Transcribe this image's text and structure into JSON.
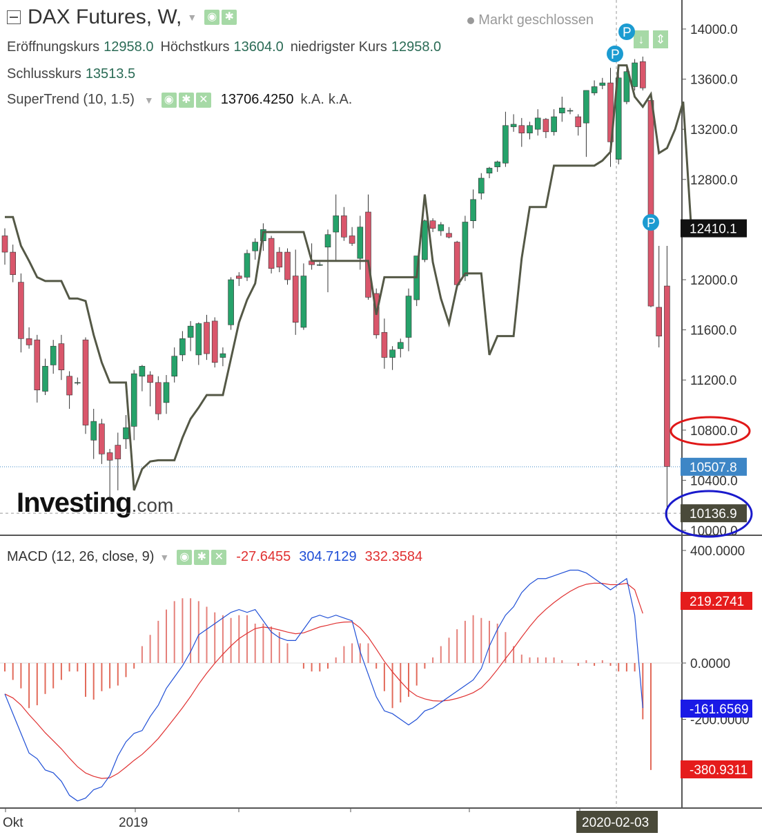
{
  "header": {
    "title": "DAX Futures, W,",
    "market_status": "Markt geschlossen",
    "ohlc": [
      {
        "label": "Eröffnungskurs",
        "value": "12958.0"
      },
      {
        "label": "Höchstkurs",
        "value": "13604.0"
      },
      {
        "label": "niedrigster Kurs",
        "value": "12958.0"
      }
    ],
    "close": {
      "label": "Schlusskurs",
      "value": "13513.5"
    },
    "supertrend": {
      "label": "SuperTrend (10, 1.5)",
      "value": "13706.4250",
      "na1": "k.A.",
      "na2": "k.A."
    }
  },
  "macd_header": {
    "label": "MACD (12, 26, close, 9)",
    "hist": "-27.6455",
    "macd": "304.7129",
    "signal": "332.3584"
  },
  "logo": {
    "main": "Investing",
    "suffix": ".com"
  },
  "price_tags": {
    "supertrend_last": "12410.1",
    "last_price": "10507.8",
    "crosshair_price": "10136.9",
    "circled_level": "10800.0"
  },
  "macd_tags": {
    "signal_last": "219.2741",
    "macd_last": "-161.6569",
    "hist_last": "-380.9311"
  },
  "x_axis": {
    "labels": [
      "Okt",
      "2019"
    ],
    "crosshair_date": "2020-02-03"
  },
  "colors": {
    "up": "#26a26a",
    "down": "#d9566b",
    "supertrend": "#545846",
    "macd": "#1f4fd6",
    "signal": "#e03030",
    "pin": "#1b9bd1",
    "last_price_bg": "#3d86c6",
    "crosshair_bg": "#4a4a3a",
    "st_bg": "#111111",
    "red_tag": "#e51c1c",
    "blue_tag": "#1a1ae6"
  },
  "chart_data": [
    {
      "type": "candlestick",
      "title": "DAX Futures, W,",
      "ylim": [
        9900,
        14150
      ],
      "y_ticks": [
        10000,
        10400,
        10800,
        11200,
        11600,
        12000,
        12400,
        12800,
        13200,
        13600,
        14000
      ],
      "candles": [
        {
          "o": 12350,
          "h": 12410,
          "l": 12120,
          "c": 12220
        },
        {
          "o": 12220,
          "h": 12280,
          "l": 11980,
          "c": 12040
        },
        {
          "o": 11980,
          "h": 12050,
          "l": 11420,
          "c": 11530
        },
        {
          "o": 11530,
          "h": 11620,
          "l": 11450,
          "c": 11480
        },
        {
          "o": 11520,
          "h": 11560,
          "l": 11020,
          "c": 11120
        },
        {
          "o": 11110,
          "h": 11370,
          "l": 11080,
          "c": 11310
        },
        {
          "o": 11320,
          "h": 11520,
          "l": 11250,
          "c": 11470
        },
        {
          "o": 11490,
          "h": 11560,
          "l": 11200,
          "c": 11280
        },
        {
          "o": 11230,
          "h": 11270,
          "l": 10970,
          "c": 11080
        },
        {
          "o": 11180,
          "h": 11220,
          "l": 11160,
          "c": 11180
        },
        {
          "o": 11520,
          "h": 11540,
          "l": 10770,
          "c": 10840
        },
        {
          "o": 10720,
          "h": 10970,
          "l": 10570,
          "c": 10870
        },
        {
          "o": 10850,
          "h": 10890,
          "l": 10530,
          "c": 10610
        },
        {
          "o": 10620,
          "h": 10650,
          "l": 10240,
          "c": 10560
        },
        {
          "o": 10680,
          "h": 10780,
          "l": 10320,
          "c": 10570
        },
        {
          "o": 10730,
          "h": 10920,
          "l": 10650,
          "c": 10820
        },
        {
          "o": 10830,
          "h": 11280,
          "l": 10720,
          "c": 11250
        },
        {
          "o": 11230,
          "h": 11320,
          "l": 11110,
          "c": 11310
        },
        {
          "o": 11240,
          "h": 11270,
          "l": 10990,
          "c": 11180
        },
        {
          "o": 11180,
          "h": 11230,
          "l": 10880,
          "c": 10930
        },
        {
          "o": 11020,
          "h": 11240,
          "l": 10930,
          "c": 11180
        },
        {
          "o": 11230,
          "h": 11460,
          "l": 11180,
          "c": 11390
        },
        {
          "o": 11400,
          "h": 11590,
          "l": 11350,
          "c": 11530
        },
        {
          "o": 11540,
          "h": 11670,
          "l": 11430,
          "c": 11630
        },
        {
          "o": 11400,
          "h": 11660,
          "l": 11320,
          "c": 11650
        },
        {
          "o": 11660,
          "h": 11720,
          "l": 11360,
          "c": 11410
        },
        {
          "o": 11670,
          "h": 11700,
          "l": 11300,
          "c": 11340
        },
        {
          "o": 11380,
          "h": 11460,
          "l": 11310,
          "c": 11410
        },
        {
          "o": 11640,
          "h": 12020,
          "l": 11600,
          "c": 12000
        },
        {
          "o": 12030,
          "h": 12060,
          "l": 11950,
          "c": 12010
        },
        {
          "o": 12020,
          "h": 12240,
          "l": 11990,
          "c": 12210
        },
        {
          "o": 12230,
          "h": 12330,
          "l": 12160,
          "c": 12300
        },
        {
          "o": 12310,
          "h": 12450,
          "l": 12230,
          "c": 12400
        },
        {
          "o": 12330,
          "h": 12350,
          "l": 12050,
          "c": 12090
        },
        {
          "o": 12220,
          "h": 12260,
          "l": 12060,
          "c": 12100
        },
        {
          "o": 12220,
          "h": 12250,
          "l": 11960,
          "c": 12000
        },
        {
          "o": 12030,
          "h": 12240,
          "l": 11560,
          "c": 11660
        },
        {
          "o": 11620,
          "h": 12130,
          "l": 11600,
          "c": 12030
        },
        {
          "o": 12150,
          "h": 12290,
          "l": 12080,
          "c": 12120
        },
        {
          "o": 12120,
          "h": 12140,
          "l": 12110,
          "c": 12120
        },
        {
          "o": 12260,
          "h": 12400,
          "l": 11900,
          "c": 12360
        },
        {
          "o": 12380,
          "h": 12680,
          "l": 12150,
          "c": 12510
        },
        {
          "o": 12510,
          "h": 12580,
          "l": 12310,
          "c": 12340
        },
        {
          "o": 12350,
          "h": 12420,
          "l": 12270,
          "c": 12290
        },
        {
          "o": 12170,
          "h": 12510,
          "l": 12080,
          "c": 12420
        },
        {
          "o": 12540,
          "h": 12680,
          "l": 11840,
          "c": 11860
        },
        {
          "o": 11890,
          "h": 11930,
          "l": 11530,
          "c": 11560
        },
        {
          "o": 11580,
          "h": 11690,
          "l": 11290,
          "c": 11380
        },
        {
          "o": 11380,
          "h": 11470,
          "l": 11280,
          "c": 11440
        },
        {
          "o": 11450,
          "h": 11530,
          "l": 11380,
          "c": 11500
        },
        {
          "o": 11540,
          "h": 11930,
          "l": 11430,
          "c": 11870
        },
        {
          "o": 11840,
          "h": 12190,
          "l": 11790,
          "c": 12190
        },
        {
          "o": 12160,
          "h": 12480,
          "l": 12140,
          "c": 12470
        },
        {
          "o": 12470,
          "h": 12490,
          "l": 12380,
          "c": 12410
        },
        {
          "o": 12390,
          "h": 12460,
          "l": 12350,
          "c": 12440
        },
        {
          "o": 12370,
          "h": 12420,
          "l": 12330,
          "c": 12340
        },
        {
          "o": 12300,
          "h": 12310,
          "l": 11950,
          "c": 11960
        },
        {
          "o": 12030,
          "h": 12510,
          "l": 11990,
          "c": 12460
        },
        {
          "o": 12470,
          "h": 12720,
          "l": 12410,
          "c": 12640
        },
        {
          "o": 12690,
          "h": 12850,
          "l": 12640,
          "c": 12810
        },
        {
          "o": 12850,
          "h": 12900,
          "l": 12810,
          "c": 12890
        },
        {
          "o": 12900,
          "h": 12950,
          "l": 12860,
          "c": 12940
        },
        {
          "o": 12930,
          "h": 13340,
          "l": 12900,
          "c": 13230
        },
        {
          "o": 13220,
          "h": 13320,
          "l": 13180,
          "c": 13240
        },
        {
          "o": 13230,
          "h": 13290,
          "l": 13060,
          "c": 13170
        },
        {
          "o": 13170,
          "h": 13260,
          "l": 13120,
          "c": 13230
        },
        {
          "o": 13200,
          "h": 13360,
          "l": 13150,
          "c": 13290
        },
        {
          "o": 13280,
          "h": 13290,
          "l": 13130,
          "c": 13180
        },
        {
          "o": 13180,
          "h": 13360,
          "l": 13150,
          "c": 13300
        },
        {
          "o": 13330,
          "h": 13460,
          "l": 13260,
          "c": 13370
        },
        {
          "o": 13350,
          "h": 13370,
          "l": 13320,
          "c": 13350
        },
        {
          "o": 13300,
          "h": 13320,
          "l": 13150,
          "c": 13220
        },
        {
          "o": 13250,
          "h": 13510,
          "l": 12980,
          "c": 13510
        },
        {
          "o": 13490,
          "h": 13590,
          "l": 13470,
          "c": 13540
        },
        {
          "o": 13550,
          "h": 13610,
          "l": 13520,
          "c": 13570
        },
        {
          "o": 13570,
          "h": 13690,
          "l": 12900,
          "c": 13100
        },
        {
          "o": 12960,
          "h": 13700,
          "l": 12920,
          "c": 13610
        },
        {
          "o": 13420,
          "h": 13710,
          "l": 13400,
          "c": 13660
        },
        {
          "o": 13540,
          "h": 13760,
          "l": 13510,
          "c": 13730
        },
        {
          "o": 13740,
          "h": 13780,
          "l": 13510,
          "c": 13530
        },
        {
          "o": 13430,
          "h": 13450,
          "l": 11780,
          "c": 11790
        },
        {
          "o": 11780,
          "h": 12270,
          "l": 11460,
          "c": 11550
        },
        {
          "o": 11950,
          "h": 12270,
          "l": 10100,
          "c": 10510
        }
      ],
      "supertrend": [
        12500,
        12500,
        12270,
        12150,
        12020,
        11990,
        11990,
        11990,
        11850,
        11850,
        11830,
        11560,
        11340,
        11180,
        11180,
        11180,
        10320,
        10490,
        10550,
        10560,
        10560,
        10560,
        10740,
        10890,
        10980,
        11080,
        11080,
        11080,
        11370,
        11660,
        11840,
        11970,
        12380,
        12380,
        12380,
        12380,
        12380,
        12380,
        12150,
        12150,
        12150,
        12150,
        12150,
        12150,
        12150,
        12150,
        11720,
        12020,
        12020,
        12020,
        12020,
        12020,
        12680,
        12140,
        11850,
        11650,
        11950,
        12050,
        12050,
        12050,
        11400,
        11550,
        11550,
        11550,
        12170,
        12580,
        12580,
        12580,
        12910,
        12910,
        12910,
        12910,
        12910,
        12910,
        12950,
        13020,
        13710,
        13710,
        13460,
        13380,
        13480,
        13010,
        13050,
        13200,
        13420,
        12410
      ]
    },
    {
      "type": "macd",
      "title": "MACD (12, 26, close, 9)",
      "ylim": [
        -1140,
        460
      ],
      "y_ticks": [
        -200,
        0,
        400
      ],
      "histogram": [
        -30,
        -60,
        -90,
        -160,
        -150,
        -110,
        -90,
        -60,
        -30,
        -30,
        -120,
        -130,
        -100,
        -90,
        -80,
        -50,
        -20,
        60,
        100,
        150,
        190,
        220,
        230,
        230,
        220,
        200,
        180,
        170,
        160,
        170,
        170,
        140,
        140,
        130,
        110,
        70,
        0,
        -20,
        -30,
        -30,
        -20,
        20,
        60,
        70,
        70,
        70,
        -20,
        -100,
        -160,
        -140,
        -120,
        -80,
        -20,
        20,
        60,
        90,
        120,
        150,
        170,
        160,
        150,
        140,
        110,
        60,
        30,
        20,
        20,
        20,
        20,
        10,
        0,
        -10,
        10,
        -10,
        10,
        -10,
        -30,
        -30,
        -30,
        -200,
        -380
      ],
      "macd": [
        -110,
        -180,
        -250,
        -320,
        -340,
        -380,
        -390,
        -420,
        -470,
        -490,
        -480,
        -450,
        -440,
        -400,
        -330,
        -280,
        -250,
        -240,
        -190,
        -150,
        -90,
        -50,
        -10,
        40,
        100,
        120,
        140,
        160,
        180,
        190,
        180,
        190,
        150,
        110,
        90,
        80,
        80,
        120,
        160,
        170,
        160,
        170,
        160,
        150,
        40,
        -40,
        -120,
        -170,
        -180,
        -200,
        -220,
        -200,
        -170,
        -160,
        -140,
        -120,
        -100,
        -80,
        -60,
        -20,
        60,
        120,
        170,
        200,
        250,
        280,
        300,
        300,
        310,
        320,
        330,
        330,
        320,
        300,
        280,
        260,
        280,
        300,
        170,
        -160
      ]
    }
  ]
}
